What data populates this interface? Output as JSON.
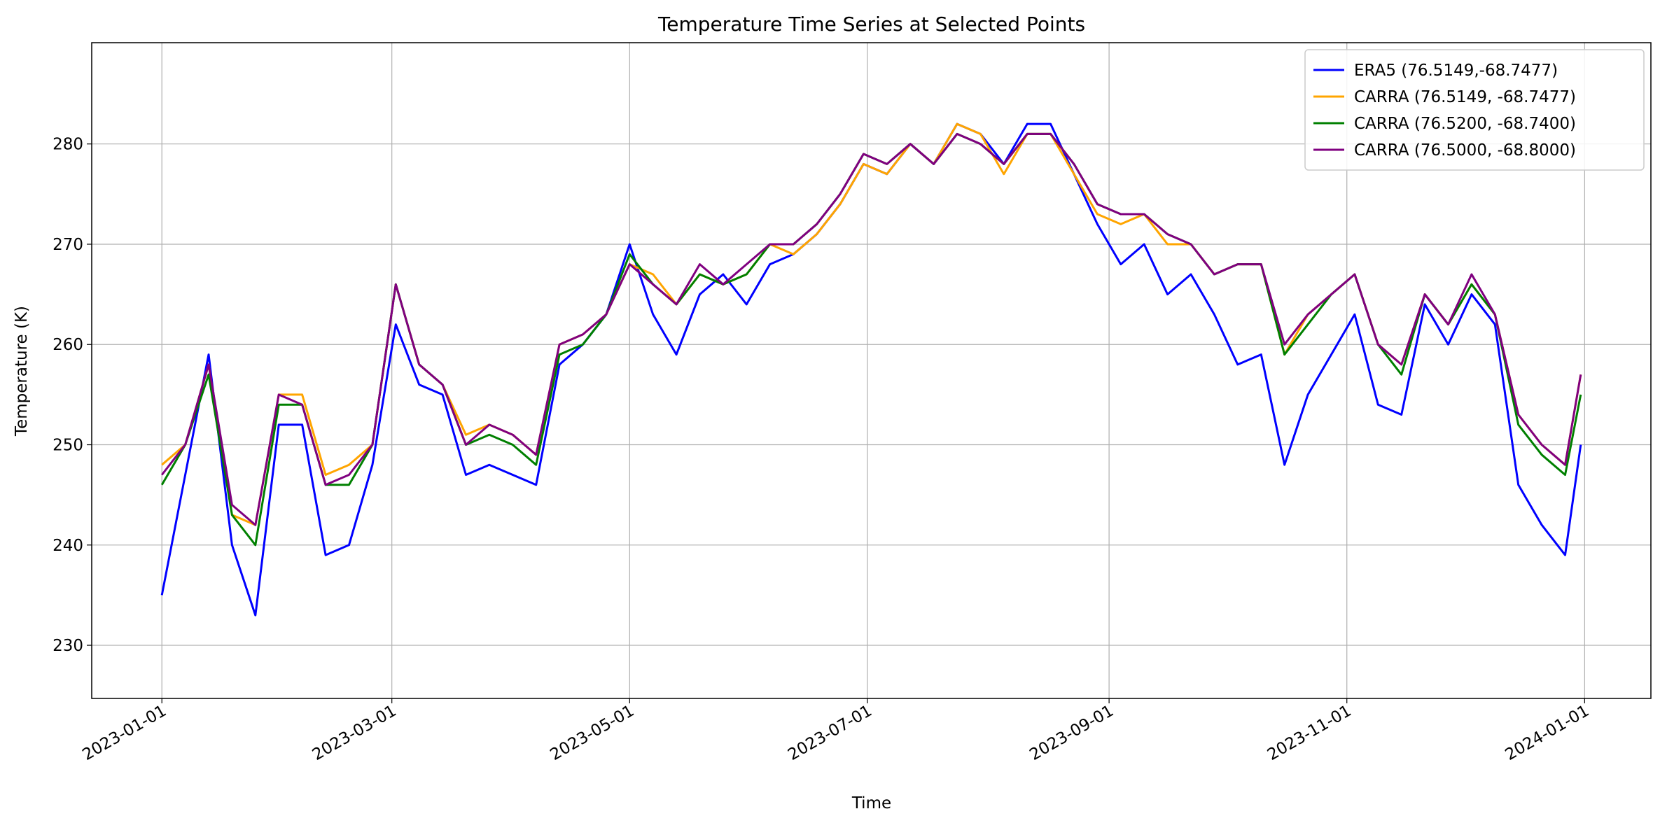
{
  "chart_data": {
    "type": "line",
    "title": "Temperature Time Series at Selected Points",
    "xlabel": "Time",
    "ylabel": "Temperature (K)",
    "x": [
      "2023-01-01",
      "2023-01-07",
      "2023-01-13",
      "2023-01-19",
      "2023-01-25",
      "2023-01-31",
      "2023-02-06",
      "2023-02-12",
      "2023-02-18",
      "2023-02-24",
      "2023-03-02",
      "2023-03-08",
      "2023-03-14",
      "2023-03-20",
      "2023-03-26",
      "2023-04-01",
      "2023-04-07",
      "2023-04-13",
      "2023-04-19",
      "2023-04-25",
      "2023-05-01",
      "2023-05-07",
      "2023-05-13",
      "2023-05-19",
      "2023-05-25",
      "2023-05-31",
      "2023-06-06",
      "2023-06-12",
      "2023-06-18",
      "2023-06-24",
      "2023-06-30",
      "2023-07-06",
      "2023-07-12",
      "2023-07-18",
      "2023-07-24",
      "2023-07-30",
      "2023-08-05",
      "2023-08-11",
      "2023-08-17",
      "2023-08-23",
      "2023-08-29",
      "2023-09-04",
      "2023-09-10",
      "2023-09-16",
      "2023-09-22",
      "2023-09-28",
      "2023-10-04",
      "2023-10-10",
      "2023-10-16",
      "2023-10-22",
      "2023-10-28",
      "2023-11-03",
      "2023-11-09",
      "2023-11-15",
      "2023-11-21",
      "2023-11-27",
      "2023-12-03",
      "2023-12-09",
      "2023-12-15",
      "2023-12-21",
      "2023-12-27",
      "2023-12-31"
    ],
    "series": [
      {
        "name": "ERA5 (76.5149,-68.7477)",
        "color": "blue",
        "values": [
          235,
          247,
          259,
          240,
          233,
          252,
          252,
          239,
          240,
          248,
          262,
          256,
          255,
          247,
          248,
          247,
          246,
          258,
          260,
          263,
          270,
          263,
          259,
          265,
          267,
          264,
          268,
          269,
          271,
          274,
          278,
          277,
          280,
          278,
          282,
          281,
          278,
          282,
          282,
          277,
          272,
          268,
          270,
          265,
          267,
          263,
          258,
          259,
          248,
          255,
          259,
          263,
          254,
          253,
          264,
          260,
          265,
          262,
          246,
          242,
          239,
          250
        ]
      },
      {
        "name": "CARRA (76.5149, -68.7477)",
        "color": "orange",
        "values": [
          248,
          250,
          258,
          243,
          242,
          255,
          255,
          247,
          248,
          250,
          266,
          258,
          256,
          251,
          252,
          251,
          249,
          260,
          261,
          263,
          268,
          267,
          264,
          267,
          266,
          267,
          270,
          269,
          271,
          274,
          278,
          277,
          280,
          278,
          282,
          281,
          277,
          281,
          281,
          277,
          273,
          272,
          273,
          270,
          270,
          267,
          268,
          268,
          259,
          263,
          265,
          267,
          260,
          258,
          265,
          262,
          266,
          263,
          253,
          250,
          248,
          257
        ]
      },
      {
        "name": "CARRA (76.5200, -68.7400)",
        "color": "green",
        "values": [
          246,
          250,
          257,
          243,
          240,
          254,
          254,
          246,
          246,
          250,
          266,
          258,
          256,
          250,
          251,
          250,
          248,
          259,
          260,
          263,
          269,
          266,
          264,
          267,
          266,
          267,
          270,
          270,
          272,
          275,
          279,
          278,
          280,
          278,
          281,
          280,
          278,
          281,
          281,
          278,
          274,
          273,
          273,
          271,
          270,
          267,
          268,
          268,
          259,
          262,
          265,
          267,
          260,
          257,
          265,
          262,
          266,
          263,
          252,
          249,
          247,
          255
        ]
      },
      {
        "name": "CARRA (76.5000, -68.8000)",
        "color": "purple",
        "values": [
          247,
          250,
          258,
          244,
          242,
          255,
          254,
          246,
          247,
          250,
          266,
          258,
          256,
          250,
          252,
          251,
          249,
          260,
          261,
          263,
          268,
          266,
          264,
          268,
          266,
          268,
          270,
          270,
          272,
          275,
          279,
          278,
          280,
          278,
          281,
          280,
          278,
          281,
          281,
          278,
          274,
          273,
          273,
          271,
          270,
          267,
          268,
          268,
          260,
          263,
          265,
          267,
          260,
          258,
          265,
          262,
          267,
          263,
          253,
          250,
          248,
          257
        ]
      }
    ],
    "xlim": [
      "2022-12-14",
      "2024-01-18"
    ],
    "xticks": [
      "2023-01-01",
      "2023-03-01",
      "2023-05-01",
      "2023-07-01",
      "2023-09-01",
      "2023-11-01",
      "2024-01-01"
    ],
    "ylim": [
      224.7,
      290.1
    ],
    "yticks": [
      230,
      240,
      250,
      260,
      270,
      280
    ],
    "grid": true,
    "legend": "upper right"
  }
}
